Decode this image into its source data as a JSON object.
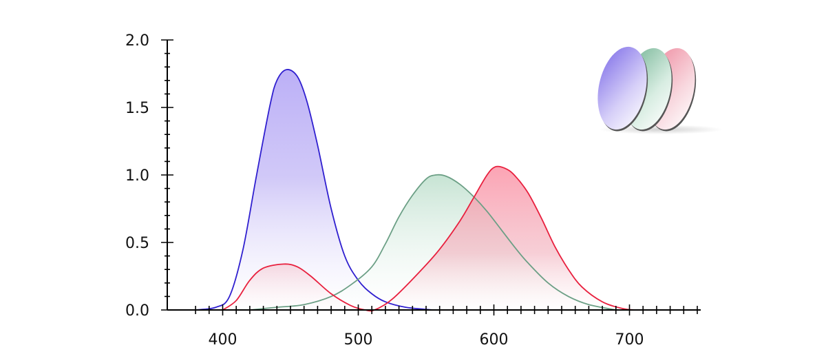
{
  "chart_data": {
    "type": "area",
    "title": "",
    "xlabel": "",
    "ylabel": "",
    "xlim": [
      360,
      750
    ],
    "ylim": [
      0,
      2.0
    ],
    "x_ticks": [
      400,
      500,
      600,
      700
    ],
    "x_tick_labels": [
      "400",
      "500",
      "600",
      "700"
    ],
    "y_ticks": [
      0.0,
      0.5,
      1.0,
      1.5,
      2.0
    ],
    "y_tick_labels": [
      "0.0",
      "0.5",
      "1.0",
      "1.5",
      "2.0"
    ],
    "x_minor_step": 10,
    "y_minor_step": 0.1,
    "grid": false,
    "legend": "top-right (icon of three lens discs, no text)",
    "series": [
      {
        "color": "#2f1fcf",
        "fill_color": "#b7a9f6",
        "curve": [
          {
            "x": 0.0,
            "y": 0.0
          },
          {
            "x": 0.0,
            "y": 0.0
          }
        ],
        "points": [
          [
            380,
            0.0
          ],
          [
            395,
            0.02
          ],
          [
            405,
            0.1
          ],
          [
            415,
            0.45
          ],
          [
            425,
            1.0
          ],
          [
            435,
            1.52
          ],
          [
            440,
            1.7
          ],
          [
            447,
            1.78
          ],
          [
            455,
            1.73
          ],
          [
            462,
            1.55
          ],
          [
            470,
            1.22
          ],
          [
            480,
            0.75
          ],
          [
            490,
            0.4
          ],
          [
            500,
            0.22
          ],
          [
            510,
            0.12
          ],
          [
            520,
            0.06
          ],
          [
            535,
            0.02
          ],
          [
            555,
            0.0
          ]
        ]
      },
      {
        "color": "#6b9f85",
        "fill_color": "#bfe0cf",
        "points": [
          [
            420,
            0.0
          ],
          [
            440,
            0.02
          ],
          [
            460,
            0.04
          ],
          [
            480,
            0.1
          ],
          [
            495,
            0.19
          ],
          [
            510,
            0.32
          ],
          [
            520,
            0.49
          ],
          [
            530,
            0.69
          ],
          [
            540,
            0.85
          ],
          [
            550,
            0.97
          ],
          [
            557,
            1.0
          ],
          [
            565,
            0.99
          ],
          [
            575,
            0.93
          ],
          [
            585,
            0.84
          ],
          [
            595,
            0.73
          ],
          [
            605,
            0.6
          ],
          [
            615,
            0.47
          ],
          [
            625,
            0.35
          ],
          [
            640,
            0.2
          ],
          [
            655,
            0.1
          ],
          [
            670,
            0.04
          ],
          [
            690,
            0.0
          ]
        ]
      },
      {
        "color": "#e8203e",
        "fill_color": "#f995a8",
        "points": [
          [
            400,
            0.0
          ],
          [
            410,
            0.07
          ],
          [
            420,
            0.22
          ],
          [
            430,
            0.31
          ],
          [
            445,
            0.34
          ],
          [
            455,
            0.32
          ],
          [
            465,
            0.25
          ],
          [
            480,
            0.12
          ],
          [
            495,
            0.03
          ],
          [
            505,
            0.0
          ],
          [
            512,
            0.0
          ],
          [
            525,
            0.08
          ],
          [
            545,
            0.28
          ],
          [
            560,
            0.45
          ],
          [
            575,
            0.66
          ],
          [
            585,
            0.83
          ],
          [
            595,
            1.0
          ],
          [
            601,
            1.06
          ],
          [
            608,
            1.05
          ],
          [
            615,
            1.0
          ],
          [
            625,
            0.87
          ],
          [
            635,
            0.68
          ],
          [
            645,
            0.47
          ],
          [
            655,
            0.3
          ],
          [
            665,
            0.17
          ],
          [
            680,
            0.06
          ],
          [
            695,
            0.01
          ],
          [
            705,
            0.0
          ]
        ]
      }
    ]
  }
}
